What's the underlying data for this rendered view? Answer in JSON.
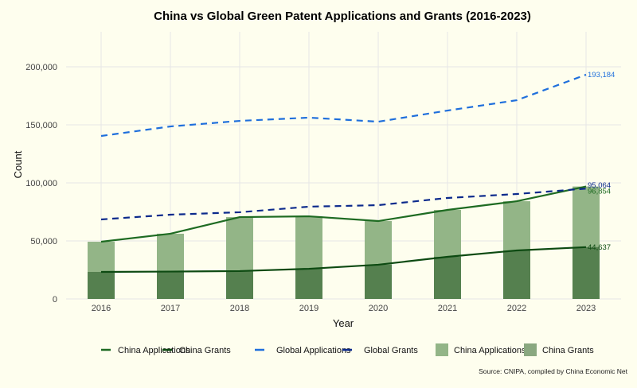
{
  "chart_data": {
    "type": "line",
    "title": "China vs Global Green Patent Applications and Grants (2016-2023)",
    "xlabel": "Year",
    "ylabel": "Count",
    "ylim": [
      0,
      220000
    ],
    "yticks": [
      0,
      50000,
      100000,
      150000,
      200000
    ],
    "ytick_labels": [
      "0",
      "50,000",
      "100,000",
      "150,000",
      "200,000"
    ],
    "categories": [
      "2016",
      "2017",
      "2018",
      "2019",
      "2020",
      "2021",
      "2022",
      "2023"
    ],
    "grid": true,
    "legend_position": "bottom",
    "series": [
      {
        "name": "China Applications",
        "kind": "line",
        "style": "solid",
        "color": "#1e6b22",
        "values": [
          49300,
          56200,
          70500,
          71200,
          67100,
          76700,
          84200,
          96854
        ],
        "end_label": "96,854"
      },
      {
        "name": "China Grants",
        "kind": "line",
        "style": "solid",
        "color": "#0d4a12",
        "values": [
          23300,
          23600,
          24000,
          26000,
          29500,
          36300,
          41800,
          44637
        ],
        "end_label": "44,637"
      },
      {
        "name": "Global Applications",
        "kind": "line",
        "style": "dashed",
        "color": "#1f6fdc",
        "values": [
          140400,
          148600,
          153400,
          156200,
          152700,
          162300,
          171200,
          193184
        ],
        "end_label": "193,184"
      },
      {
        "name": "Global Grants",
        "kind": "line",
        "style": "dashed",
        "color": "#0c2a8c",
        "values": [
          68500,
          72600,
          74700,
          79500,
          80800,
          87000,
          90400,
          95064
        ],
        "end_label": "95,064"
      },
      {
        "name": "China Applications",
        "kind": "bar",
        "color": "#93b587",
        "values": [
          49300,
          56200,
          70500,
          71200,
          67100,
          76700,
          84200,
          96854
        ]
      },
      {
        "name": "China Grants",
        "kind": "bar",
        "color": "#55804f",
        "values": [
          23300,
          23600,
          24000,
          26000,
          29500,
          36300,
          41800,
          44637
        ]
      }
    ],
    "source": "Source: CNIPA, compiled by China Economic Net"
  },
  "colors": {
    "background": "#fefeee",
    "grid": "#e6e6e6",
    "bar_legend_grants": "#8aa880"
  }
}
